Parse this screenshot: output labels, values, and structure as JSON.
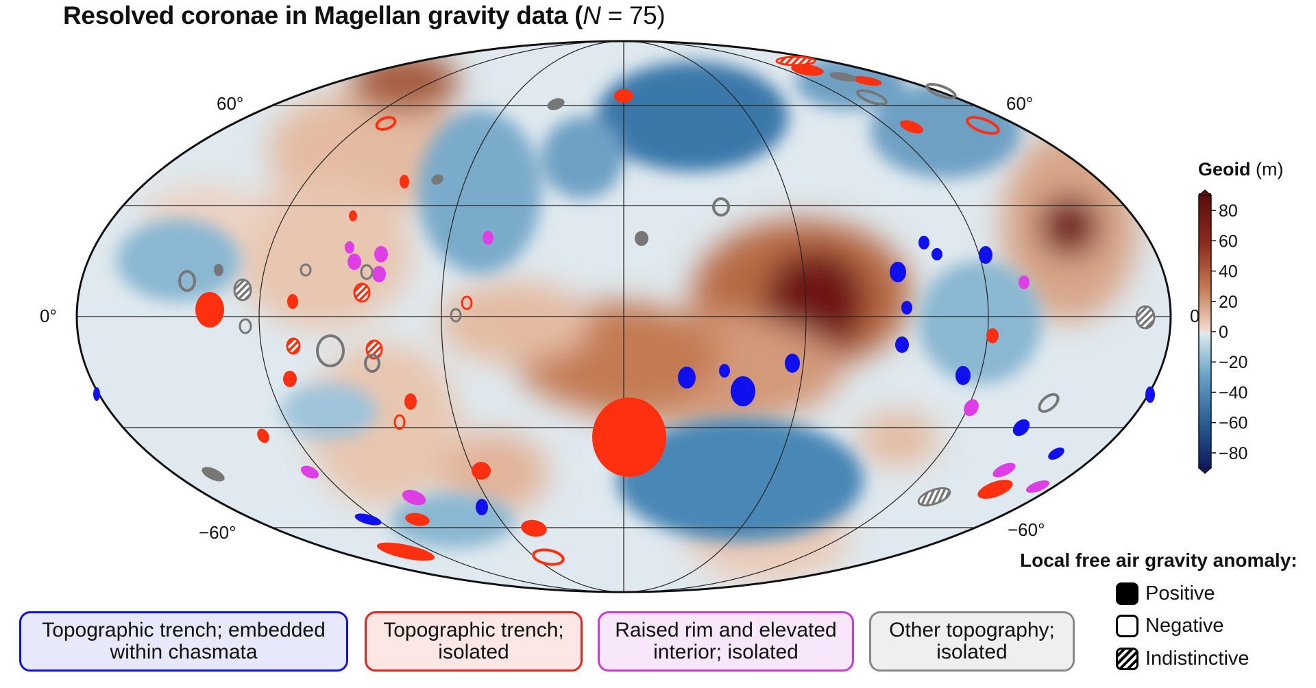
{
  "title": {
    "prefix": "Resolved coronae in Magellan gravity data (",
    "n_symbol": "N",
    "n_value": " = 75)"
  },
  "map": {
    "projection": "Mollweide",
    "latitude_labels": {
      "north_60_left": "60°",
      "north_60_right": "60°",
      "equator_left": "0°",
      "equator_right": "0°",
      "south_60_left": "−60°",
      "south_60_right": "−60°"
    },
    "colors": {
      "blue_category": "#1010ee",
      "red_category": "#ff3010",
      "magenta_category": "#dd3ee6",
      "gray_category": "#777777"
    }
  },
  "colorbar": {
    "title_bold": "Geoid",
    "title_unit": " (m)",
    "ticks": [
      "80",
      "60",
      "40",
      "20",
      "0",
      "−20",
      "−40",
      "−60",
      "−80"
    ],
    "tick_values": [
      80,
      60,
      40,
      20,
      0,
      -20,
      -40,
      -60,
      -80
    ],
    "range": [
      -90,
      90
    ],
    "colors": {
      "low": "#0d1a5e",
      "mid_low": "#6aa2c8",
      "zero_blue": "#e0ecf2",
      "zero_red": "#f2ddd0",
      "mid_high": "#c47a52",
      "high": "#5a0e0e"
    }
  },
  "legend": {
    "heading": "Local free air gravity anomaly:",
    "items": [
      {
        "label": "Positive",
        "style": "filled"
      },
      {
        "label": "Negative",
        "style": "outline"
      },
      {
        "label": "Indistinctive",
        "style": "hatched"
      }
    ]
  },
  "categories": [
    {
      "line1": "Topographic trench; embedded",
      "line2": "within chasmata",
      "color": "#1010e0"
    },
    {
      "line1": "Topographic trench;",
      "line2": "isolated",
      "color": "#e5231e"
    },
    {
      "line1": "Raised rim and elevated",
      "line2": "interior; isolated",
      "color": "#c93cd9"
    },
    {
      "line1": "Other topography;",
      "line2": "isolated",
      "color": "#888888"
    }
  ]
}
